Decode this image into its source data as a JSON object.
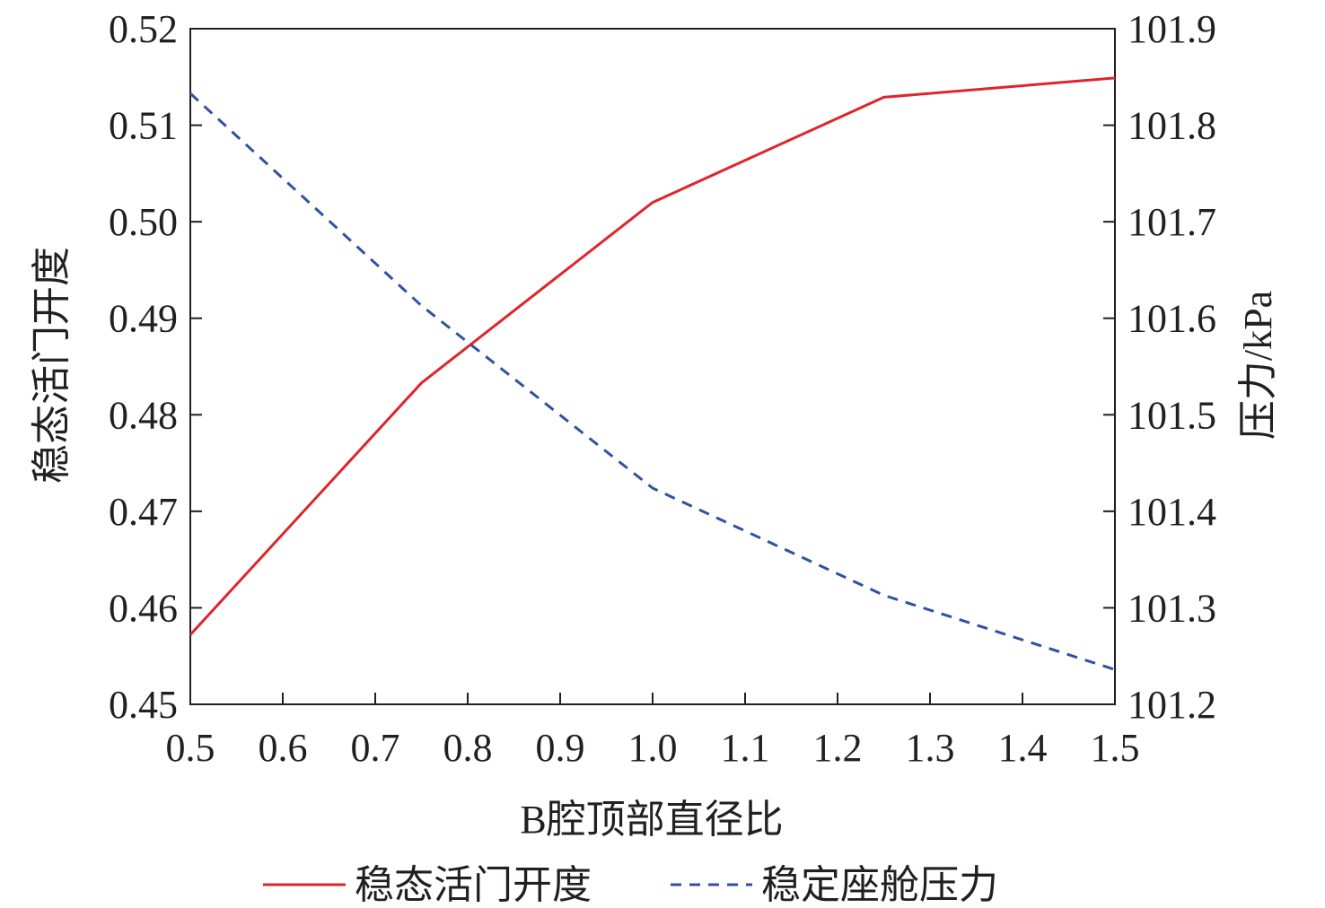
{
  "chart_data": {
    "type": "line",
    "xlabel": "B腔顶部直径比",
    "ylabel_left": "稳态活门开度",
    "ylabel_right": "压力/kPa",
    "x_ticks": [
      "0.5",
      "0.6",
      "0.7",
      "0.8",
      "0.9",
      "1.0",
      "1.1",
      "1.2",
      "1.3",
      "1.4",
      "1.5"
    ],
    "y_left_ticks": [
      "0.45",
      "0.46",
      "0.47",
      "0.48",
      "0.49",
      "0.50",
      "0.51",
      "0.52"
    ],
    "y_right_ticks": [
      "101.2",
      "101.3",
      "101.4",
      "101.5",
      "101.6",
      "101.7",
      "101.8",
      "101.9"
    ],
    "xlim": [
      0.5,
      1.5
    ],
    "ylim_left": [
      0.45,
      0.52
    ],
    "ylim_right": [
      101.2,
      101.9
    ],
    "legend_position": "bottom",
    "series": [
      {
        "name": "稳态活门开度",
        "axis": "left",
        "color": "#e0242b",
        "style": "solid",
        "x": [
          0.5,
          0.75,
          1.0,
          1.25,
          1.5
        ],
        "y": [
          0.4572,
          0.4833,
          0.502,
          0.5129,
          0.5149
        ]
      },
      {
        "name": "稳定座舱压力",
        "axis": "right",
        "color": "#2f52a0",
        "style": "dashed",
        "x": [
          0.5,
          0.75,
          1.0,
          1.25,
          1.5
        ],
        "y": [
          101.833,
          101.613,
          101.424,
          101.313,
          101.236
        ]
      }
    ]
  }
}
